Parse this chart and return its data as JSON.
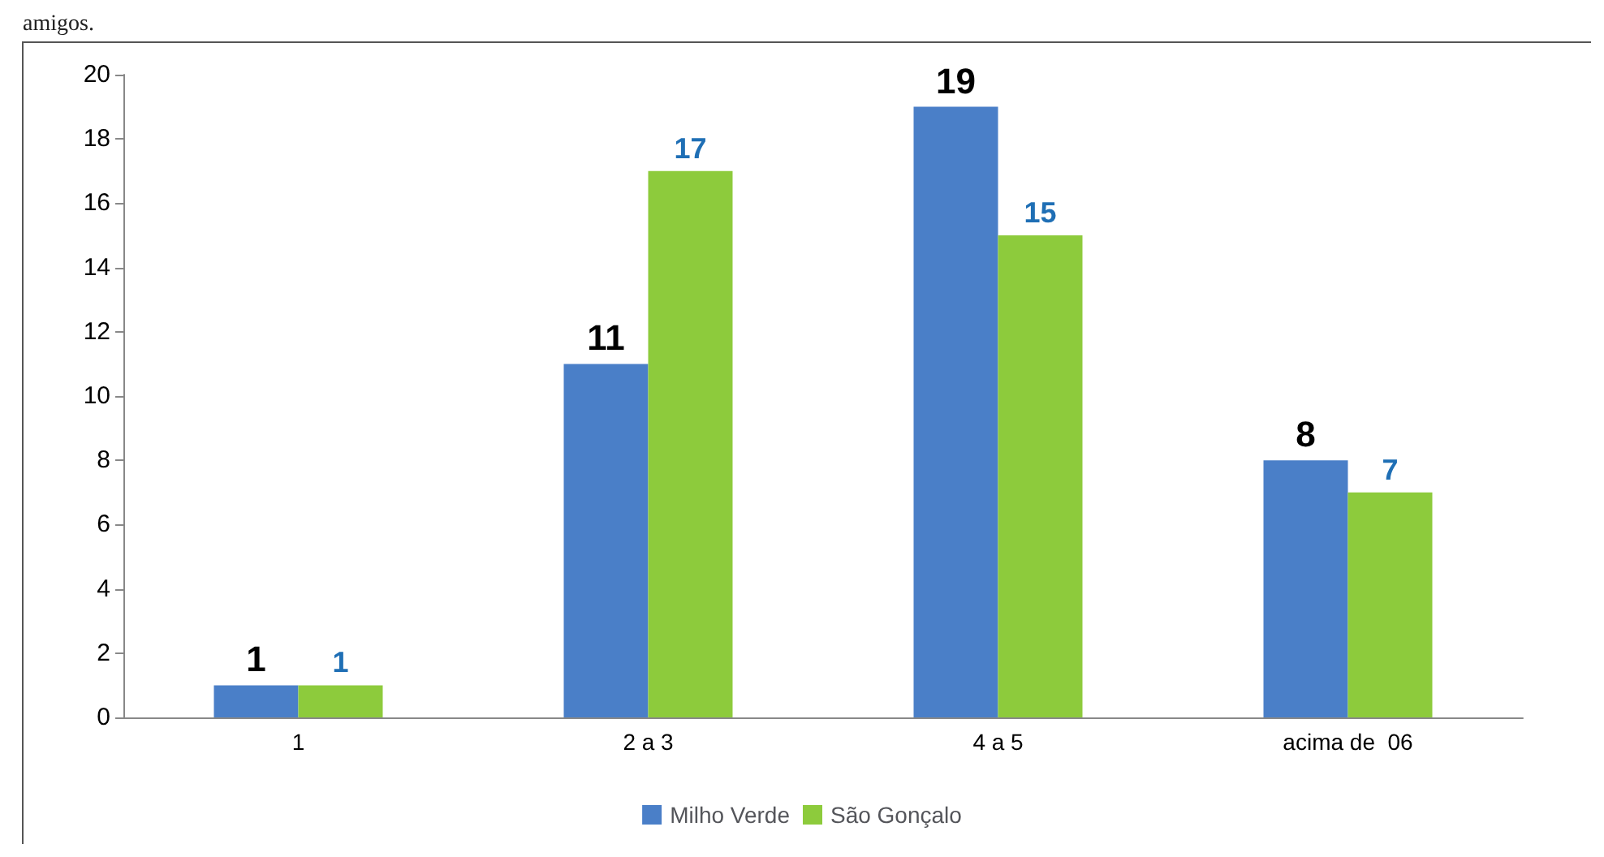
{
  "chart_data": {
    "type": "bar",
    "annotations": [
      "amigos."
    ],
    "categories": [
      "1",
      "2 a 3",
      "4 a 5",
      "acima de  06"
    ],
    "series": [
      {
        "name": "Milho Verde",
        "color": "#4a7fc8",
        "values": [
          1,
          11,
          19,
          8
        ]
      },
      {
        "name": "São Gonçalo",
        "color": "#8dcb3c",
        "values": [
          1,
          17,
          15,
          7
        ]
      }
    ],
    "ylim": [
      0,
      20
    ],
    "yticks": [
      0,
      2,
      4,
      6,
      8,
      10,
      12,
      14,
      16,
      18,
      20
    ],
    "grid": false,
    "legend": "bottom",
    "data_labels": true
  }
}
